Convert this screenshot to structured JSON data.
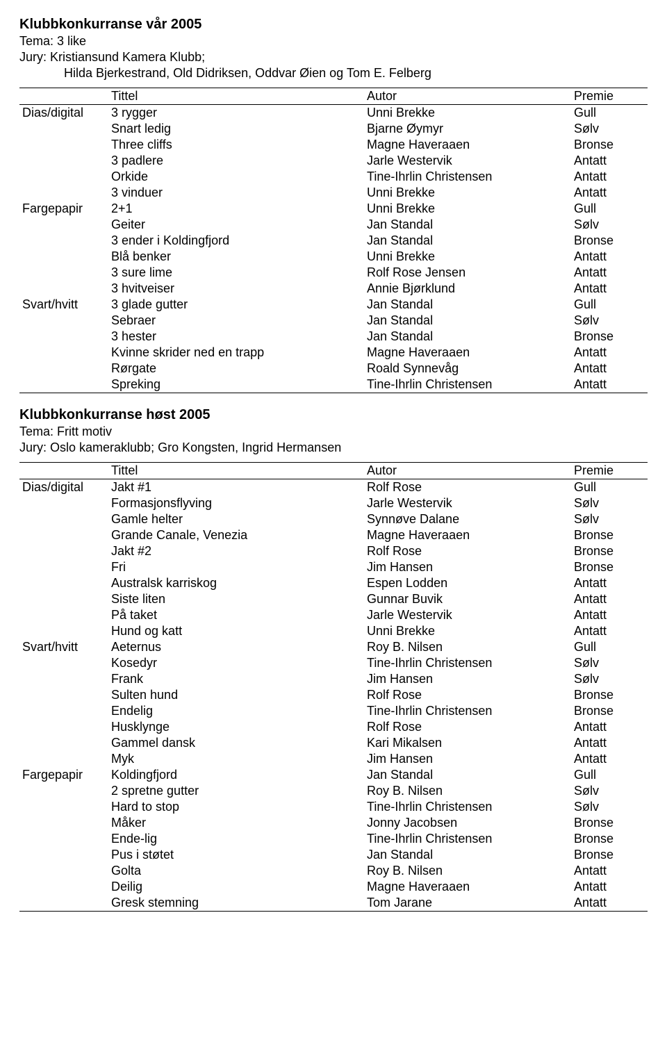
{
  "competitions": [
    {
      "heading": "Klubbkonkurranse vår 2005",
      "theme": "Tema: 3 like",
      "jury_line1": "Jury: Kristiansund Kamera Klubb;",
      "jury_line2": "Hilda Bjerkestrand, Old Didriksen, Oddvar Øien og Tom E. Felberg",
      "columns": [
        "Tittel",
        "Autor",
        "Premie"
      ],
      "rows": [
        {
          "cat": "Dias/digital",
          "title": "3 rygger",
          "autor": "Unni Brekke",
          "prem": "Gull"
        },
        {
          "cat": "",
          "title": "Snart ledig",
          "autor": "Bjarne Øymyr",
          "prem": "Sølv"
        },
        {
          "cat": "",
          "title": "Three cliffs",
          "autor": "Magne Haveraaen",
          "prem": "Bronse"
        },
        {
          "cat": "",
          "title": "3 padlere",
          "autor": "Jarle Westervik",
          "prem": "Antatt"
        },
        {
          "cat": "",
          "title": "Orkide",
          "autor": "Tine-Ihrlin Christensen",
          "prem": "Antatt"
        },
        {
          "cat": "",
          "title": "3 vinduer",
          "autor": "Unni Brekke",
          "prem": "Antatt"
        },
        {
          "cat": "Fargepapir",
          "title": "2+1",
          "autor": "Unni Brekke",
          "prem": "Gull"
        },
        {
          "cat": "",
          "title": "Geiter",
          "autor": "Jan Standal",
          "prem": "Sølv"
        },
        {
          "cat": "",
          "title": "3 ender i Koldingfjord",
          "autor": "Jan Standal",
          "prem": "Bronse"
        },
        {
          "cat": "",
          "title": "Blå benker",
          "autor": "Unni Brekke",
          "prem": "Antatt"
        },
        {
          "cat": "",
          "title": "3 sure lime",
          "autor": "Rolf Rose Jensen",
          "prem": "Antatt"
        },
        {
          "cat": "",
          "title": "3 hvitveiser",
          "autor": "Annie Bjørklund",
          "prem": "Antatt"
        },
        {
          "cat": "Svart/hvitt",
          "title": "3 glade gutter",
          "autor": "Jan Standal",
          "prem": "Gull"
        },
        {
          "cat": "",
          "title": "Sebraer",
          "autor": "Jan Standal",
          "prem": "Sølv"
        },
        {
          "cat": "",
          "title": "3 hester",
          "autor": "Jan Standal",
          "prem": "Bronse"
        },
        {
          "cat": "",
          "title": "Kvinne skrider ned en trapp",
          "autor": "Magne Haveraaen",
          "prem": "Antatt"
        },
        {
          "cat": "",
          "title": "Rørgate",
          "autor": "Roald Synnevåg",
          "prem": "Antatt"
        },
        {
          "cat": "",
          "title": "Spreking",
          "autor": "Tine-Ihrlin Christensen",
          "prem": "Antatt"
        }
      ]
    },
    {
      "heading": "Klubbkonkurranse høst 2005",
      "theme": "Tema: Fritt motiv",
      "jury_line1": "Jury: Oslo kameraklubb; Gro Kongsten, Ingrid Hermansen",
      "jury_line2": "",
      "columns": [
        "Tittel",
        "Autor",
        "Premie"
      ],
      "rows": [
        {
          "cat": "Dias/digital",
          "title": "Jakt #1",
          "autor": "Rolf Rose",
          "prem": "Gull"
        },
        {
          "cat": "",
          "title": "Formasjonsflyving",
          "autor": "Jarle Westervik",
          "prem": "Sølv"
        },
        {
          "cat": "",
          "title": "Gamle helter",
          "autor": "Synnøve Dalane",
          "prem": "Sølv"
        },
        {
          "cat": "",
          "title": "Grande Canale, Venezia",
          "autor": "Magne Haveraaen",
          "prem": "Bronse"
        },
        {
          "cat": "",
          "title": "Jakt #2",
          "autor": "Rolf Rose",
          "prem": "Bronse"
        },
        {
          "cat": "",
          "title": "Fri",
          "autor": "Jim Hansen",
          "prem": "Bronse"
        },
        {
          "cat": "",
          "title": "Australsk karriskog",
          "autor": "Espen Lodden",
          "prem": "Antatt"
        },
        {
          "cat": "",
          "title": "Siste liten",
          "autor": "Gunnar Buvik",
          "prem": "Antatt"
        },
        {
          "cat": "",
          "title": "På taket",
          "autor": "Jarle Westervik",
          "prem": "Antatt"
        },
        {
          "cat": "",
          "title": "Hund og katt",
          "autor": "Unni Brekke",
          "prem": "Antatt"
        },
        {
          "cat": "Svart/hvitt",
          "title": "Aeternus",
          "autor": "Roy B. Nilsen",
          "prem": "Gull"
        },
        {
          "cat": "",
          "title": "Kosedyr",
          "autor": "Tine-Ihrlin Christensen",
          "prem": "Sølv"
        },
        {
          "cat": "",
          "title": "Frank",
          "autor": "Jim Hansen",
          "prem": "Sølv"
        },
        {
          "cat": "",
          "title": "Sulten hund",
          "autor": "Rolf Rose",
          "prem": "Bronse"
        },
        {
          "cat": "",
          "title": "Endelig",
          "autor": "Tine-Ihrlin Christensen",
          "prem": "Bronse"
        },
        {
          "cat": "",
          "title": "Husklynge",
          "autor": "Rolf Rose",
          "prem": "Antatt"
        },
        {
          "cat": "",
          "title": "Gammel dansk",
          "autor": "Kari Mikalsen",
          "prem": "Antatt"
        },
        {
          "cat": "",
          "title": "Myk",
          "autor": "Jim Hansen",
          "prem": "Antatt"
        },
        {
          "cat": "Fargepapir",
          "title": "Koldingfjord",
          "autor": "Jan Standal",
          "prem": "Gull"
        },
        {
          "cat": "",
          "title": "2 spretne gutter",
          "autor": "Roy B. Nilsen",
          "prem": "Sølv"
        },
        {
          "cat": "",
          "title": "Hard to stop",
          "autor": "Tine-Ihrlin Christensen",
          "prem": "Sølv"
        },
        {
          "cat": "",
          "title": "Måker",
          "autor": "Jonny Jacobsen",
          "prem": "Bronse"
        },
        {
          "cat": "",
          "title": "Ende-lig",
          "autor": "Tine-Ihrlin Christensen",
          "prem": "Bronse"
        },
        {
          "cat": "",
          "title": "Pus i støtet",
          "autor": "Jan Standal",
          "prem": "Bronse"
        },
        {
          "cat": "",
          "title": "Golta",
          "autor": "Roy B. Nilsen",
          "prem": "Antatt"
        },
        {
          "cat": "",
          "title": "Deilig",
          "autor": "Magne Haveraaen",
          "prem": "Antatt"
        },
        {
          "cat": "",
          "title": "Gresk stemning",
          "autor": "Tom Jarane",
          "prem": "Antatt"
        }
      ]
    }
  ]
}
